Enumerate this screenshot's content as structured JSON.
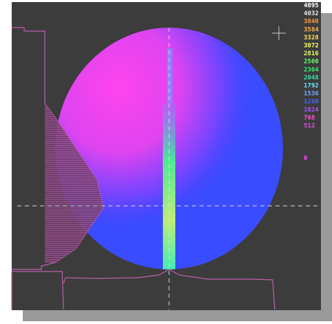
{
  "color_scale": [
    {
      "label": 4095,
      "color": "#ffffff"
    },
    {
      "label": 4032,
      "color": "#e8e8e8"
    },
    {
      "label": 3840,
      "color": "#ff9a3c"
    },
    {
      "label": 3584,
      "color": "#ffb347"
    },
    {
      "label": 3328,
      "color": "#ffe066"
    },
    {
      "label": 3072,
      "color": "#ffff66"
    },
    {
      "label": 2816,
      "color": "#e6ff66"
    },
    {
      "label": 2560,
      "color": "#66ff66"
    },
    {
      "label": 2304,
      "color": "#33ee66"
    },
    {
      "label": 2048,
      "color": "#33ddaa"
    },
    {
      "label": 1792,
      "color": "#66e6ff"
    },
    {
      "label": 1536,
      "color": "#66aaff"
    },
    {
      "label": 1280,
      "color": "#4466ff"
    },
    {
      "label": 1024,
      "color": "#aa55ff"
    },
    {
      "label": 768,
      "color": "#ff55cc"
    },
    {
      "label": 512,
      "color": "#dd55dd"
    },
    {
      "label": 0,
      "color": "#ff44ff"
    }
  ]
}
